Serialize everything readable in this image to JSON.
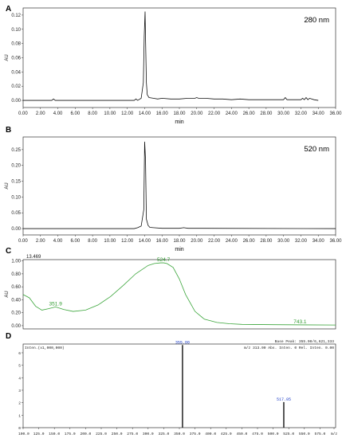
{
  "chart_data": [
    {
      "panel": "A",
      "type": "line",
      "annotation": "280 nm",
      "xlabel": "min",
      "ylabel": "AU",
      "xlim": [
        0,
        36
      ],
      "ylim": [
        -0.01,
        0.13
      ],
      "xticks": [
        "0.00",
        "2.00",
        "4.00",
        "6.00",
        "8.00",
        "10.00",
        "12.00",
        "14.00",
        "16.00",
        "18.00",
        "20.00",
        "22.00",
        "24.00",
        "26.00",
        "28.00",
        "30.00",
        "32.00",
        "34.00",
        "36.00"
      ],
      "yticks": [
        "0.00",
        "0.02",
        "0.04",
        "0.06",
        "0.08",
        "0.10",
        "0.12"
      ],
      "color": "#111111",
      "series": [
        {
          "x": [
            0,
            3.3,
            3.5,
            3.7,
            12.8,
            13.0,
            13.2,
            13.6,
            13.85,
            13.95,
            14.05,
            14.1,
            14.2,
            14.3,
            14.5,
            15,
            15.5,
            16,
            17,
            18,
            19,
            19.8,
            20,
            20.2,
            21,
            22,
            23,
            24,
            25,
            26,
            27,
            28,
            29,
            30,
            30.2,
            30.4,
            30.6,
            31,
            32,
            32.2,
            32.4,
            32.6,
            32.8,
            33,
            33.5,
            34
          ],
          "y": [
            0,
            0,
            0.002,
            0,
            0,
            0.002,
            0,
            0.003,
            0.025,
            0.09,
            0.125,
            0.09,
            0.025,
            0.008,
            0.004,
            0.003,
            0.002,
            0.003,
            0.002,
            0.002,
            0.003,
            0.003,
            0.004,
            0.003,
            0.003,
            0.002,
            0.002,
            0.001,
            0.002,
            0.001,
            0.001,
            0.001,
            0.001,
            0.001,
            0.004,
            0.001,
            0.001,
            0.001,
            0.001,
            0.003,
            0.001,
            0.004,
            0.001,
            0.003,
            0.001,
            0
          ]
        }
      ]
    },
    {
      "panel": "B",
      "type": "line",
      "annotation": "520 nm",
      "xlabel": "min",
      "ylabel": "AU",
      "xlim": [
        0,
        36
      ],
      "ylim": [
        -0.02,
        0.29
      ],
      "xticks": [
        "0.00",
        "2.00",
        "4.00",
        "6.00",
        "8.00",
        "10.00",
        "12.00",
        "14.00",
        "16.00",
        "18.00",
        "20.00",
        "22.00",
        "24.00",
        "26.00",
        "28.00",
        "30.00",
        "32.00",
        "34.00",
        "36.00"
      ],
      "yticks": [
        "0.00",
        "0.05",
        "0.10",
        "0.15",
        "0.20",
        "0.25"
      ],
      "color": "#111111",
      "series": [
        {
          "x": [
            0,
            12.8,
            13.2,
            13.6,
            13.9,
            14.0,
            14.1,
            14.2,
            14.4,
            14.6,
            15,
            16,
            18,
            18.5,
            19,
            36
          ],
          "y": [
            0,
            0,
            0.003,
            0.008,
            0.06,
            0.275,
            0.22,
            0.03,
            0.01,
            0.004,
            0.003,
            0.001,
            0.001,
            0.003,
            0.001,
            0
          ]
        }
      ]
    },
    {
      "panel": "C",
      "type": "line",
      "corner_label": "13.469",
      "ylabel": "AU",
      "xlim": [
        300,
        800
      ],
      "ylim": [
        -0.05,
        1.02
      ],
      "yticks": [
        "0.00",
        "0.20",
        "0.40",
        "0.60",
        "0.80",
        "1.00"
      ],
      "color": "#3aa53a",
      "peak_labels": [
        {
          "x": 351.9,
          "y": 0.29,
          "text": "351.9"
        },
        {
          "x": 524.7,
          "y": 0.97,
          "text": "524.7"
        },
        {
          "x": 743.1,
          "y": 0.01,
          "text": "743.1"
        }
      ],
      "series": [
        {
          "x": [
            300,
            310,
            320,
            330,
            340,
            352,
            365,
            380,
            400,
            420,
            440,
            460,
            480,
            500,
            510,
            520,
            525,
            530,
            540,
            550,
            560,
            575,
            590,
            610,
            630,
            650,
            700,
            750,
            800
          ],
          "y": [
            0.48,
            0.43,
            0.3,
            0.24,
            0.26,
            0.29,
            0.25,
            0.22,
            0.24,
            0.32,
            0.45,
            0.62,
            0.8,
            0.93,
            0.96,
            0.97,
            0.97,
            0.96,
            0.9,
            0.72,
            0.48,
            0.22,
            0.1,
            0.05,
            0.03,
            0.02,
            0.015,
            0.012,
            0.01
          ]
        }
      ]
    },
    {
      "panel": "D",
      "type": "bar",
      "header_left": "Inten.(x1,000,000)",
      "header_right": "Base Peak: 355.00/6,621,333",
      "header_mid": "m/z  313.00  Abs. Inten.       0  Rel. Inten.  0.00",
      "xlim": [
        100,
        600
      ],
      "ylim": [
        0,
        6.7
      ],
      "xticks": [
        "100.0",
        "125.0",
        "150.0",
        "175.0",
        "200.0",
        "225.0",
        "250.0",
        "275.0",
        "300.0",
        "325.0",
        "350.0",
        "375.0",
        "400.0",
        "425.0",
        "450.0",
        "475.0",
        "500.0",
        "525.0",
        "550.0",
        "575.0",
        "m/z"
      ],
      "yticks": [
        "0",
        "1",
        "2",
        "3",
        "4",
        "5",
        "6"
      ],
      "color": "#111111",
      "peaks": [
        {
          "mz": 355.0,
          "value": 6.62,
          "label": "355.00"
        },
        {
          "mz": 517.05,
          "value": 2.05,
          "label": "517.05"
        }
      ]
    }
  ]
}
